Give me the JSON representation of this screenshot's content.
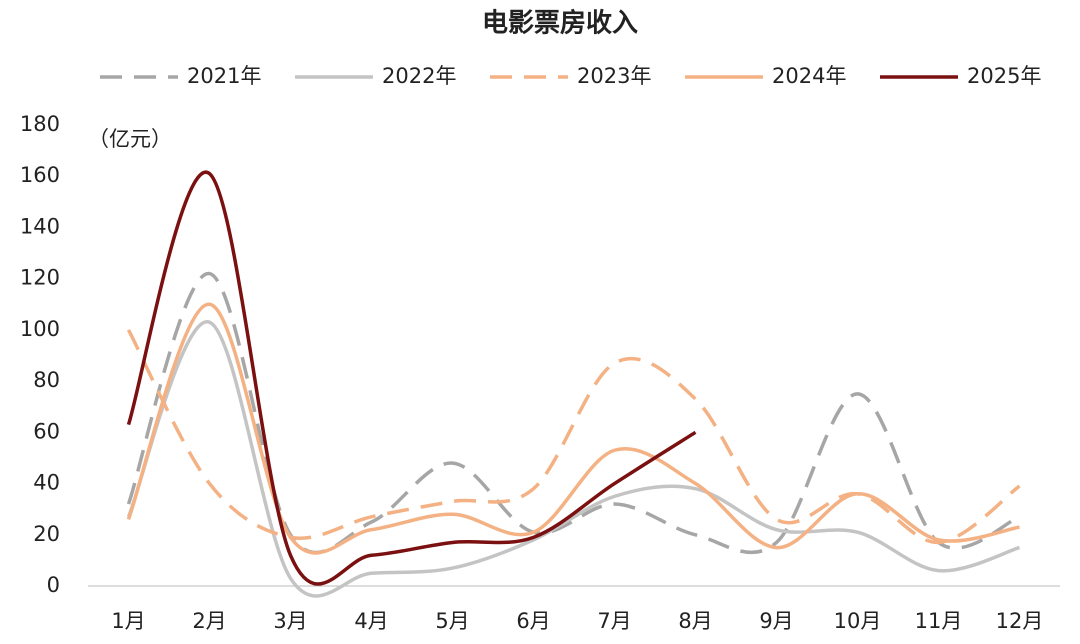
{
  "chart_data": {
    "type": "line",
    "title": "电影票房收入",
    "y_label": "（亿元）",
    "categories": [
      "1月",
      "2月",
      "3月",
      "4月",
      "5月",
      "6月",
      "7月",
      "8月",
      "9月",
      "10月",
      "11月",
      "12月"
    ],
    "series": [
      {
        "name": "2021年",
        "color": "#a6a6a6",
        "dashed": true,
        "values": [
          32,
          122,
          20,
          25,
          48,
          21,
          32,
          20,
          17,
          75,
          17,
          27
        ]
      },
      {
        "name": "2022年",
        "color": "#c4c4c4",
        "dashed": false,
        "values": [
          27,
          103,
          3,
          5,
          7,
          18,
          35,
          38,
          22,
          21,
          6,
          15
        ]
      },
      {
        "name": "2023年",
        "color": "#f4b183",
        "dashed": true,
        "values": [
          100,
          40,
          19,
          27,
          33,
          38,
          87,
          73,
          26,
          36,
          17,
          39
        ]
      },
      {
        "name": "2024年",
        "color": "#f4b183",
        "dashed": false,
        "values": [
          26,
          110,
          19,
          22,
          28,
          21,
          53,
          40,
          15,
          36,
          18,
          23
        ]
      },
      {
        "name": "2025年",
        "color": "#7b1010",
        "dashed": false,
        "values": [
          63,
          161,
          12,
          12,
          17,
          19,
          40,
          60,
          null,
          null,
          null,
          null
        ]
      }
    ],
    "ylim": [
      0,
      180
    ],
    "yticks": [
      0,
      20,
      40,
      60,
      80,
      100,
      120,
      140,
      160,
      180
    ],
    "grid": false,
    "legend": "top"
  }
}
